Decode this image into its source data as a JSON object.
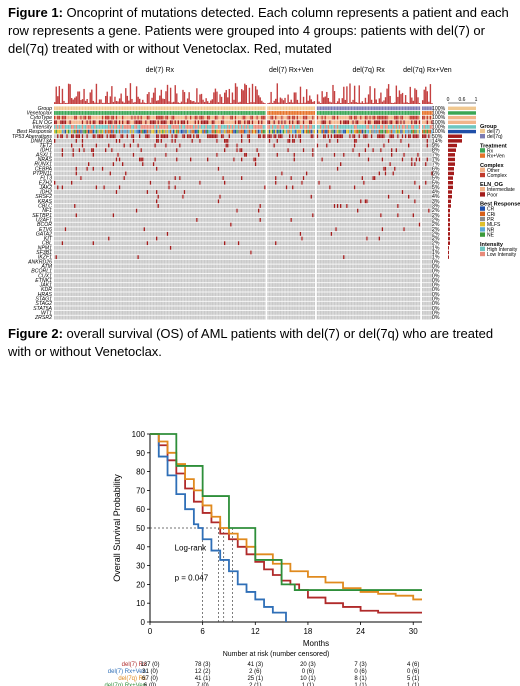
{
  "figure1": {
    "label": "Figure 1:",
    "caption": " Oncoprint of mutations detected. Each column represents a patient and each row represents a gene. Patients were grouped into 4 groups: patients with del(7) or del(7q) treated with or without Venetoclax. Red, mutated",
    "group_headers": [
      "del(7) Rx",
      "del(7) Rx+Ven",
      "del(7q) Rx",
      "del(7q) Rx+Ven"
    ],
    "bar_axis": [
      "0",
      "0.6",
      "1"
    ],
    "annotation_rows": [
      {
        "name": "Group",
        "pct": "100%"
      },
      {
        "name": "Venetoclax",
        "pct": "100%"
      },
      {
        "name": "CytoType",
        "pct": "100%"
      },
      {
        "name": "ELN OG",
        "pct": "100%"
      },
      {
        "name": "Intensity",
        "pct": "100%"
      },
      {
        "name": "Best Response",
        "pct": "100%"
      },
      {
        "name": "TP53 Aberrations",
        "pct": "50%"
      }
    ],
    "genes": [
      {
        "name": "DNMT3A",
        "pct": "14%"
      },
      {
        "name": "TET2",
        "pct": "9%"
      },
      {
        "name": "IDH1",
        "pct": "8%"
      },
      {
        "name": "ASXL1",
        "pct": "7%"
      },
      {
        "name": "NRAS",
        "pct": "7%"
      },
      {
        "name": "RUNX1",
        "pct": "7%"
      },
      {
        "name": "CEBPA",
        "pct": "6%"
      },
      {
        "name": "PTPN11",
        "pct": "6%"
      },
      {
        "name": "FLT3",
        "pct": "5%"
      },
      {
        "name": "EZH2",
        "pct": "5%"
      },
      {
        "name": "JAK2",
        "pct": "5%"
      },
      {
        "name": "IDH2",
        "pct": "4%"
      },
      {
        "name": "SRSF2",
        "pct": "4%"
      },
      {
        "name": "KRAS",
        "pct": "3%"
      },
      {
        "name": "CBLC",
        "pct": "3%"
      },
      {
        "name": "NF1",
        "pct": "2%"
      },
      {
        "name": "SETBP1",
        "pct": "2%"
      },
      {
        "name": "U2AF1",
        "pct": "2%"
      },
      {
        "name": "BCOR",
        "pct": "2%"
      },
      {
        "name": "ETV6",
        "pct": "2%"
      },
      {
        "name": "GATA2",
        "pct": "2%"
      },
      {
        "name": "KIT",
        "pct": "2%"
      },
      {
        "name": "CBL",
        "pct": "2%"
      },
      {
        "name": "NPM1",
        "pct": "1%"
      },
      {
        "name": "SF3B1",
        "pct": "1%"
      },
      {
        "name": "IKZF1",
        "pct": "1%"
      },
      {
        "name": "ANKRD26",
        "pct": "0%"
      },
      {
        "name": "ATM",
        "pct": "0%"
      },
      {
        "name": "BCORL1",
        "pct": "0%"
      },
      {
        "name": "CUX1",
        "pct": "0%"
      },
      {
        "name": "ETNK1",
        "pct": "0%"
      },
      {
        "name": "JAK1",
        "pct": "0%"
      },
      {
        "name": "KDR",
        "pct": "0%"
      },
      {
        "name": "HRAS",
        "pct": "0%"
      },
      {
        "name": "STAG1",
        "pct": "0%"
      },
      {
        "name": "STAG2",
        "pct": "0%"
      },
      {
        "name": "STAT5A",
        "pct": "0%"
      },
      {
        "name": "WT1",
        "pct": "0%"
      },
      {
        "name": "ZRSR2",
        "pct": "0%"
      }
    ],
    "legend": [
      {
        "title": "Group",
        "items": [
          {
            "label": "del(7)",
            "color": "#f0c890"
          },
          {
            "label": "del(7q)",
            "color": "#7c7cb4"
          }
        ]
      },
      {
        "title": "Treatment",
        "items": [
          {
            "label": "Rx",
            "color": "#3aa655"
          },
          {
            "label": "Rx+Ven",
            "color": "#e6732a"
          }
        ]
      },
      {
        "title": "Complex",
        "items": [
          {
            "label": "Other",
            "color": "#f2b48a"
          },
          {
            "label": "Complex",
            "color": "#c0392b"
          }
        ]
      },
      {
        "title": "ELN_OG",
        "items": [
          {
            "label": "Intermediate",
            "color": "#f2b48a"
          },
          {
            "label": "Poor",
            "color": "#a31b1b"
          }
        ]
      },
      {
        "title": "Best Response",
        "items": [
          {
            "label": "CR",
            "color": "#1f4fa8"
          },
          {
            "label": "CRi",
            "color": "#d65f1a"
          },
          {
            "label": "PR",
            "color": "#8a8a8a"
          },
          {
            "label": "MLFS",
            "color": "#e0c02a"
          },
          {
            "label": "NR",
            "color": "#5aa9d6"
          },
          {
            "label": "NE",
            "color": "#3a9a3a"
          }
        ]
      },
      {
        "title": "Intensity",
        "items": [
          {
            "label": "High Intensity",
            "color": "#6ec6c0"
          },
          {
            "label": "Low Intensity",
            "color": "#e88a7a"
          }
        ]
      }
    ],
    "colors": {
      "mutated": "#a31b1b",
      "wildtype": "#c9c9c9",
      "bar": "#c44040"
    }
  },
  "figure2": {
    "label": "Figure 2:",
    "caption": " overall survival (OS) of AML patients with del(7) or del(7q) who are treated with or without Venetoclax."
  },
  "chart_data": {
    "type": "line",
    "ylabel": "Overall Survival Probability",
    "xlabel": "Months",
    "xlim": [
      0,
      31
    ],
    "ylim": [
      0,
      100
    ],
    "xticks": [
      "0",
      "6",
      "12",
      "18",
      "24",
      "30"
    ],
    "yticks": [
      "0",
      "10",
      "20",
      "30",
      "40",
      "50",
      "60",
      "70",
      "80",
      "90",
      "100"
    ],
    "annotations": [
      "Log-rank",
      "p = 0.047"
    ],
    "median_lines": [
      {
        "x": 6.0,
        "y": 50
      },
      {
        "x": 7.8,
        "y": 50
      },
      {
        "x": 8.4,
        "y": 50
      },
      {
        "x": 9.4,
        "y": 50
      }
    ],
    "series": [
      {
        "name": "del(7) Rx",
        "color": "#b02a2a",
        "x": [
          0,
          1,
          2,
          3,
          4,
          5,
          6,
          7,
          8,
          9,
          10,
          11,
          12,
          13,
          14,
          15,
          16,
          17,
          18,
          20,
          22,
          24,
          26,
          28,
          30,
          31
        ],
        "y": [
          100,
          94,
          86,
          79,
          71,
          64,
          58,
          53,
          47,
          44,
          40,
          36,
          32,
          28,
          25,
          22,
          20,
          17,
          13,
          10,
          8,
          6,
          5,
          5,
          5,
          5
        ]
      },
      {
        "name": "del(7) Rx+Ven",
        "color": "#2f6fb7",
        "x": [
          0,
          1,
          2,
          3,
          4,
          5,
          5.5,
          6,
          7,
          8,
          9,
          10,
          11,
          12,
          13,
          14,
          15.5
        ],
        "y": [
          100,
          88,
          78,
          68,
          60,
          52,
          50,
          44,
          38,
          33,
          27,
          20,
          16,
          12,
          8,
          5,
          0
        ]
      },
      {
        "name": "del(7q) Rx",
        "color": "#e08a1e",
        "x": [
          0,
          1,
          2,
          3,
          4,
          5,
          6,
          7,
          8,
          9,
          10,
          11,
          12,
          14,
          16,
          18,
          20,
          22,
          24,
          26,
          28,
          30,
          31
        ],
        "y": [
          100,
          96,
          90,
          84,
          76,
          70,
          62,
          56,
          50,
          47,
          44,
          40,
          36,
          31,
          27,
          24,
          21,
          18,
          16,
          15,
          14,
          12,
          12
        ]
      },
      {
        "name": "del(7q) Rx+Ven",
        "color": "#2e8f3a",
        "x": [
          0,
          3,
          3,
          6,
          6,
          9,
          9,
          12,
          12,
          15,
          15,
          16.5,
          16.5,
          31
        ],
        "y": [
          100,
          100,
          83,
          83,
          67,
          67,
          50,
          50,
          33,
          33,
          20,
          20,
          17,
          17
        ]
      }
    ],
    "risk_table": {
      "title": "Number at risk (number censored)",
      "columns": [
        "0",
        "6",
        "12",
        "18",
        "24",
        "30"
      ],
      "rows": [
        {
          "label": "del(7) Rx",
          "values": [
            "137 (0)",
            "78 (3)",
            "41 (3)",
            "20 (3)",
            "7 (3)",
            "4 (6)"
          ]
        },
        {
          "label": "del(7) Rx+Ven",
          "values": [
            "31 (0)",
            "12 (2)",
            "2 (6)",
            "0 (6)",
            "0 (6)",
            "0 (6)"
          ]
        },
        {
          "label": "del(7q) Rx",
          "values": [
            "67 (0)",
            "41 (1)",
            "25 (1)",
            "10 (1)",
            "8 (1)",
            "5 (1)"
          ]
        },
        {
          "label": "del(7q) Rx+Ven",
          "values": [
            "6 (0)",
            "7 (0)",
            "2 (1)",
            "1 (1)",
            "1 (1)",
            "1 (1)"
          ]
        }
      ]
    }
  }
}
